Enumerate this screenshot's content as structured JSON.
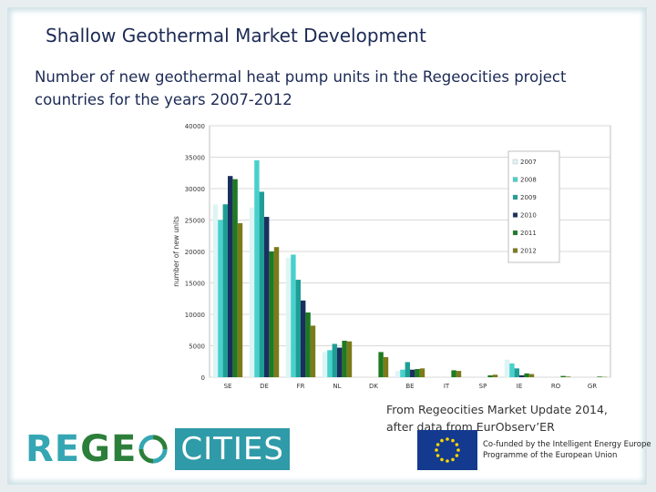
{
  "page": {
    "title": "Shallow Geothermal Market Development",
    "subtitle": "Number of new geothermal heat pump units in the Regeocities project countries for the years 2007-2012",
    "source_line1": "From Regeocities Market Update 2014,",
    "source_line2": "after data from EurObserv’ER",
    "logo_re": "RE",
    "logo_geo": "GE",
    "logo_cities": "CITIES",
    "eu_line1": "Co-funded by the Intelligent Energy Europe",
    "eu_line2": "Programme of the European Union"
  },
  "chart_data": {
    "type": "bar",
    "title": "",
    "xlabel": "",
    "ylabel": "number of new units",
    "ylim": [
      0,
      40000
    ],
    "yticks": [
      0,
      5000,
      10000,
      15000,
      20000,
      25000,
      30000,
      35000,
      40000
    ],
    "categories": [
      "SE",
      "DE",
      "FR",
      "NL",
      "DK",
      "BE",
      "IT",
      "SP",
      "IE",
      "RO",
      "GR"
    ],
    "legend_position": "top-right",
    "series": [
      {
        "name": "2007",
        "color": "#dff4f4",
        "values": [
          27500,
          27000,
          19000,
          4000,
          0,
          1000,
          0,
          0,
          2800,
          0,
          0
        ]
      },
      {
        "name": "2008",
        "color": "#48d1cc",
        "values": [
          25000,
          34500,
          19500,
          4300,
          0,
          1200,
          0,
          0,
          2200,
          0,
          0
        ]
      },
      {
        "name": "2009",
        "color": "#1f9e96",
        "values": [
          27500,
          29500,
          15500,
          5300,
          0,
          2400,
          0,
          0,
          1400,
          0,
          0
        ]
      },
      {
        "name": "2010",
        "color": "#1b2f5e",
        "values": [
          32000,
          25500,
          12200,
          4700,
          0,
          1200,
          0,
          0,
          300,
          0,
          0
        ]
      },
      {
        "name": "2011",
        "color": "#1e7a22",
        "values": [
          31500,
          20000,
          10300,
          5800,
          4000,
          1300,
          1100,
          300,
          600,
          200,
          100
        ]
      },
      {
        "name": "2012",
        "color": "#7c7a1a",
        "values": [
          24500,
          20700,
          8200,
          5700,
          3200,
          1400,
          1000,
          400,
          500,
          100,
          50
        ]
      }
    ]
  }
}
